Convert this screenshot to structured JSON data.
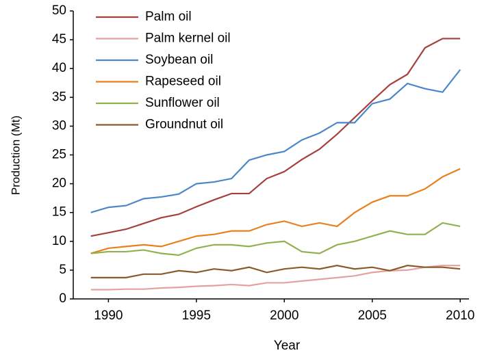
{
  "chart_data": {
    "type": "line",
    "x_label": "Year",
    "y_label": "Production (Mt)",
    "x": [
      1989,
      1990,
      1991,
      1992,
      1993,
      1994,
      1995,
      1996,
      1997,
      1998,
      1999,
      2000,
      2001,
      2002,
      2003,
      2004,
      2005,
      2006,
      2007,
      2008,
      2009,
      2010
    ],
    "xlim": [
      1988,
      2010.5
    ],
    "xticks": [
      1990,
      1995,
      2000,
      2005,
      2010
    ],
    "ylim": [
      0,
      50
    ],
    "yticks": [
      0,
      5,
      10,
      15,
      20,
      25,
      30,
      35,
      40,
      45,
      50
    ],
    "legend": "upper left",
    "grid": false,
    "series": [
      {
        "name": "Palm oil",
        "color": "#a5403e",
        "values": [
          10.9,
          11.5,
          12.1,
          13.1,
          14.1,
          14.7,
          16.0,
          17.2,
          18.3,
          18.3,
          20.9,
          22.1,
          24.2,
          26.0,
          28.6,
          31.5,
          34.4,
          37.2,
          39.0,
          43.6,
          45.2,
          45.2
        ]
      },
      {
        "name": "Palm kernel oil",
        "color": "#e6a0a0",
        "values": [
          1.6,
          1.6,
          1.7,
          1.7,
          1.9,
          2.0,
          2.2,
          2.3,
          2.5,
          2.3,
          2.8,
          2.8,
          3.1,
          3.4,
          3.7,
          4.0,
          4.6,
          4.9,
          5.0,
          5.5,
          5.8,
          5.8
        ]
      },
      {
        "name": "Soybean oil",
        "color": "#4a86c8",
        "values": [
          15.0,
          15.9,
          16.2,
          17.4,
          17.7,
          18.2,
          20.0,
          20.3,
          20.9,
          24.1,
          25.0,
          25.6,
          27.6,
          28.8,
          30.6,
          30.6,
          33.9,
          34.7,
          37.4,
          36.5,
          35.9,
          39.8
        ]
      },
      {
        "name": "Rapeseed oil",
        "color": "#e8801e",
        "values": [
          7.9,
          8.8,
          9.1,
          9.4,
          9.1,
          10.0,
          10.9,
          11.2,
          11.8,
          11.8,
          12.9,
          13.5,
          12.6,
          13.2,
          12.6,
          15.0,
          16.8,
          17.9,
          17.9,
          19.1,
          21.2,
          22.6
        ]
      },
      {
        "name": "Sunflower oil",
        "color": "#92b050",
        "values": [
          7.9,
          8.2,
          8.2,
          8.5,
          7.9,
          7.6,
          8.8,
          9.4,
          9.4,
          9.1,
          9.7,
          10.0,
          8.2,
          7.9,
          9.4,
          10.0,
          10.9,
          11.8,
          11.2,
          11.2,
          13.2,
          12.6
        ]
      },
      {
        "name": "Groundnut oil",
        "color": "#8b5a2b",
        "values": [
          3.7,
          3.7,
          3.7,
          4.3,
          4.3,
          4.9,
          4.6,
          5.2,
          4.9,
          5.5,
          4.6,
          5.2,
          5.5,
          5.2,
          5.8,
          5.2,
          5.5,
          4.9,
          5.8,
          5.5,
          5.5,
          5.2
        ]
      }
    ]
  }
}
